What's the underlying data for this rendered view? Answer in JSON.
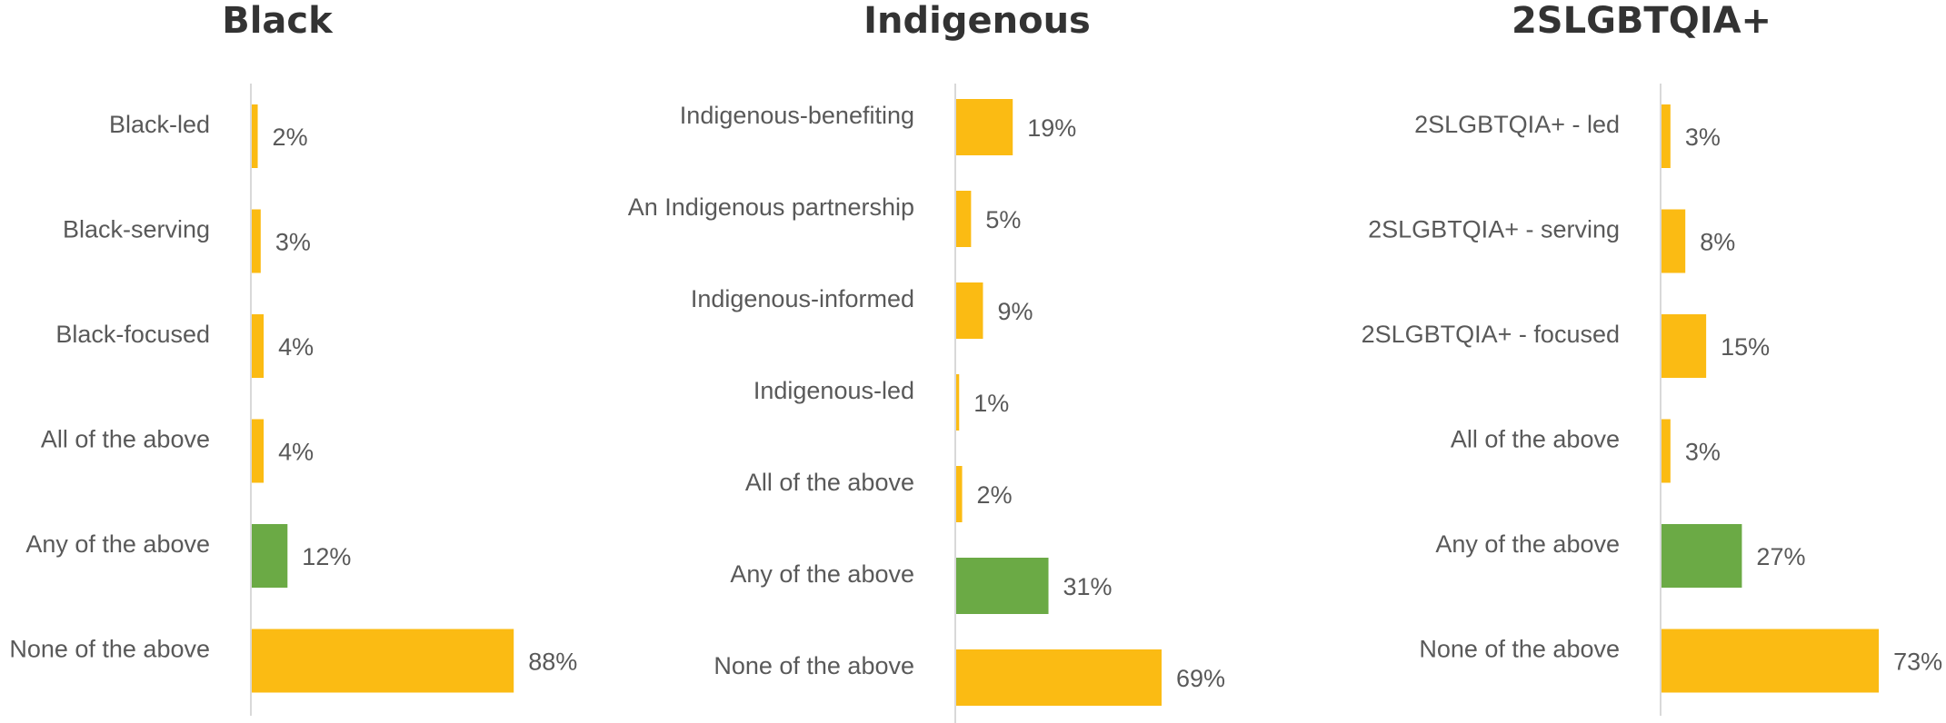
{
  "colors": {
    "default_bar": "#FBBB13",
    "highlight_bar": "#6BAA45",
    "axis": "#D9D9D9",
    "text": "#595959",
    "title": "#333333"
  },
  "chart_data": [
    {
      "type": "bar",
      "orientation": "horizontal",
      "title": "Black",
      "categories": [
        "Black-led",
        "Black-serving",
        "Black-focused",
        "All of the above",
        "Any of the above",
        "None of the above"
      ],
      "values": [
        2,
        3,
        4,
        4,
        12,
        88
      ],
      "value_labels": [
        "2%",
        "3%",
        "4%",
        "4%",
        "12%",
        "88%"
      ],
      "highlight": [
        false,
        false,
        false,
        false,
        true,
        false
      ],
      "unit": "%",
      "grid": false,
      "legend": "none"
    },
    {
      "type": "bar",
      "orientation": "horizontal",
      "title": "Indigenous",
      "categories": [
        "Indigenous-benefiting",
        "An Indigenous partnership",
        "Indigenous-informed",
        "Indigenous-led",
        "All of the above",
        "Any of the above",
        "None of the above"
      ],
      "values": [
        19,
        5,
        9,
        1,
        2,
        31,
        69
      ],
      "value_labels": [
        "19%",
        "5%",
        "9%",
        "1%",
        "2%",
        "31%",
        "69%"
      ],
      "highlight": [
        false,
        false,
        false,
        false,
        false,
        true,
        false
      ],
      "unit": "%",
      "grid": false,
      "legend": "none"
    },
    {
      "type": "bar",
      "orientation": "horizontal",
      "title": "2SLGBTQIA+",
      "categories": [
        "2SLGBTQIA+ - led",
        "2SLGBTQIA+ - serving",
        "2SLGBTQIA+ - focused",
        "All of the above",
        "Any of the above",
        "None of the above"
      ],
      "values": [
        3,
        8,
        15,
        3,
        27,
        73
      ],
      "value_labels": [
        "3%",
        "8%",
        "15%",
        "3%",
        "27%",
        "73%"
      ],
      "highlight": [
        false,
        false,
        false,
        false,
        true,
        false
      ],
      "unit": "%",
      "grid": false,
      "legend": "none"
    }
  ]
}
